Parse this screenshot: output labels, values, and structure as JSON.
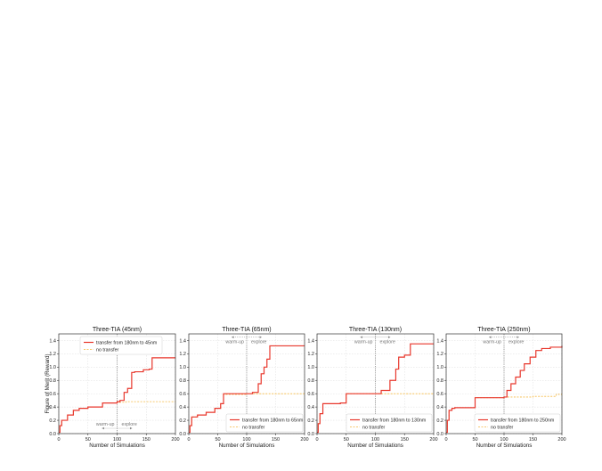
{
  "figure": {
    "ylabel": "Figure of Merit (Reward)",
    "xlabel": "Number of Simulations",
    "colors": {
      "transfer": "#e8372c",
      "no_transfer": "#f5b942",
      "divider": "#666666",
      "grid": "#dddddd"
    }
  },
  "chart_data": [
    {
      "type": "line",
      "title": "Three-TIA (45nm)",
      "xlabel": "Number of Simulations",
      "ylabel": "Figure of Merit (Reward)",
      "xlim": [
        0,
        200
      ],
      "ylim": [
        0,
        1.5
      ],
      "xticks": [
        0,
        50,
        100,
        150,
        200
      ],
      "yticks": [
        0.0,
        0.2,
        0.4,
        0.6,
        0.8,
        1.0,
        1.2,
        1.4
      ],
      "grid": true,
      "legend": {
        "position": "top-left"
      },
      "annotations": {
        "divider_x": 100,
        "warmup": "warm-up",
        "explore": "explore",
        "arrow_y": 0.08
      },
      "series": [
        {
          "name": "transfer from 180nm to 45nm",
          "style": "solid",
          "x": [
            0,
            2,
            5,
            15,
            25,
            35,
            50,
            75,
            100,
            105,
            112,
            118,
            125,
            130,
            145,
            155,
            160,
            180,
            200
          ],
          "y": [
            0.02,
            0.12,
            0.2,
            0.28,
            0.35,
            0.38,
            0.4,
            0.46,
            0.48,
            0.5,
            0.62,
            0.68,
            0.92,
            0.93,
            0.96,
            0.97,
            1.14,
            1.14,
            1.14
          ]
        },
        {
          "name": "no transfer",
          "style": "dashed",
          "x": [
            0,
            2,
            5,
            15,
            25,
            35,
            50,
            75,
            100,
            115,
            200
          ],
          "y": [
            0.02,
            0.12,
            0.2,
            0.28,
            0.35,
            0.38,
            0.4,
            0.46,
            0.47,
            0.48,
            0.48
          ]
        }
      ]
    },
    {
      "type": "line",
      "title": "Three-TIA (65nm)",
      "xlabel": "Number of Simulations",
      "xlim": [
        0,
        200
      ],
      "ylim": [
        0,
        1.5
      ],
      "xticks": [
        0,
        50,
        100,
        150,
        200
      ],
      "yticks": [
        0.0,
        0.2,
        0.4,
        0.6,
        0.8,
        1.0,
        1.2,
        1.4
      ],
      "grid": true,
      "legend": {
        "position": "bottom-right"
      },
      "annotations": {
        "divider_x": 100,
        "warmup": "warm-up",
        "explore": "explore",
        "arrow_y": 1.45
      },
      "series": [
        {
          "name": "transfer from 180nm to 65nm",
          "style": "solid",
          "x": [
            0,
            2,
            5,
            15,
            30,
            45,
            55,
            60,
            100,
            110,
            120,
            125,
            130,
            135,
            140,
            150,
            200
          ],
          "y": [
            0.02,
            0.12,
            0.25,
            0.28,
            0.32,
            0.38,
            0.45,
            0.6,
            0.6,
            0.62,
            0.75,
            0.9,
            1.0,
            1.12,
            1.32,
            1.32,
            1.32
          ]
        },
        {
          "name": "no transfer",
          "style": "dashed",
          "x": [
            0,
            2,
            5,
            15,
            30,
            45,
            55,
            60,
            100,
            200
          ],
          "y": [
            0.02,
            0.12,
            0.25,
            0.28,
            0.32,
            0.38,
            0.45,
            0.59,
            0.6,
            0.6
          ]
        }
      ]
    },
    {
      "type": "line",
      "title": "Three-TIA (130nm)",
      "xlabel": "Number of Simulations",
      "xlim": [
        0,
        200
      ],
      "ylim": [
        0,
        1.5
      ],
      "xticks": [
        0,
        50,
        100,
        150,
        200
      ],
      "yticks": [
        0.0,
        0.2,
        0.4,
        0.6,
        0.8,
        1.0,
        1.2,
        1.4
      ],
      "grid": true,
      "legend": {
        "position": "bottom-right"
      },
      "annotations": {
        "divider_x": 100,
        "warmup": "warm-up",
        "explore": "explore",
        "arrow_y": 1.45
      },
      "series": [
        {
          "name": "transfer from 180nm to 130nm",
          "style": "solid",
          "x": [
            0,
            2,
            5,
            10,
            40,
            50,
            100,
            110,
            125,
            135,
            140,
            150,
            160,
            200
          ],
          "y": [
            0.02,
            0.15,
            0.3,
            0.45,
            0.46,
            0.6,
            0.6,
            0.65,
            0.8,
            0.97,
            1.15,
            1.18,
            1.35,
            1.35
          ]
        },
        {
          "name": "no transfer",
          "style": "dashed",
          "x": [
            0,
            2,
            5,
            10,
            40,
            50,
            200
          ],
          "y": [
            0.02,
            0.15,
            0.3,
            0.45,
            0.46,
            0.6,
            0.61
          ]
        }
      ]
    },
    {
      "type": "line",
      "title": "Three-TIA (250nm)",
      "xlabel": "Number of Simulations",
      "xlim": [
        0,
        200
      ],
      "ylim": [
        0,
        1.5
      ],
      "xticks": [
        0,
        50,
        100,
        150,
        200
      ],
      "yticks": [
        0.0,
        0.2,
        0.4,
        0.6,
        0.8,
        1.0,
        1.2,
        1.4
      ],
      "grid": true,
      "legend": {
        "position": "bottom-right"
      },
      "annotations": {
        "divider_x": 100,
        "warmup": "warm-up",
        "explore": "explore",
        "arrow_y": 1.45
      },
      "series": [
        {
          "name": "transfer from 180nm to 250nm",
          "style": "solid",
          "x": [
            0,
            2,
            5,
            10,
            15,
            50,
            100,
            105,
            112,
            120,
            128,
            135,
            145,
            155,
            165,
            180,
            200
          ],
          "y": [
            0.02,
            0.2,
            0.35,
            0.38,
            0.39,
            0.54,
            0.55,
            0.65,
            0.75,
            0.85,
            0.95,
            1.05,
            1.15,
            1.25,
            1.28,
            1.3,
            1.32
          ]
        },
        {
          "name": "no transfer",
          "style": "dashed",
          "x": [
            0,
            2,
            5,
            10,
            15,
            50,
            100,
            150,
            190,
            200
          ],
          "y": [
            0.02,
            0.2,
            0.35,
            0.38,
            0.39,
            0.54,
            0.55,
            0.56,
            0.59,
            0.59
          ]
        }
      ]
    }
  ]
}
